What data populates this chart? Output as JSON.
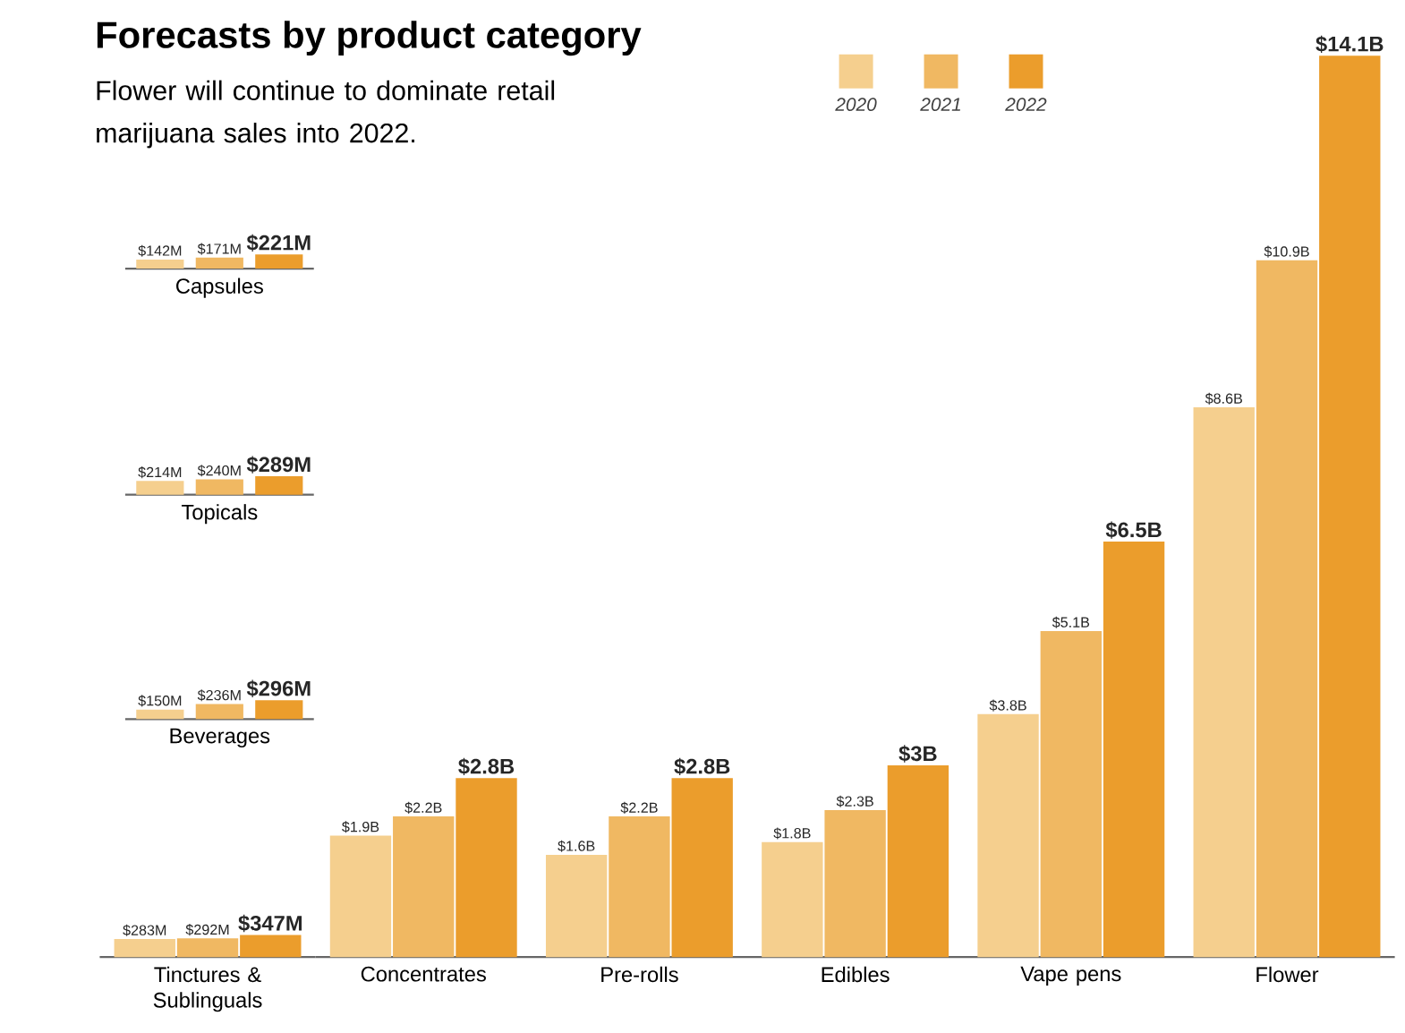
{
  "chart_data": [
    {
      "type": "bar",
      "title": "Forecasts by product category",
      "subtitle": "Flower will continue to dominate retail marijuana sales into 2022.",
      "legend": "top",
      "categories": [
        "Concentrates",
        "Pre-rolls",
        "Edibles",
        "Vape pens",
        "Flower"
      ],
      "series": [
        {
          "name": "2020",
          "color": "#f5cf8e",
          "values": [
            1.9,
            1.6,
            1.8,
            3.8,
            8.6
          ],
          "value_labels": [
            "$1.9B",
            "$1.6B",
            "$1.8B",
            "$3.8B",
            "$8.6B"
          ]
        },
        {
          "name": "2021",
          "color": "#f0b862",
          "values": [
            2.2,
            2.2,
            2.3,
            5.1,
            10.9
          ],
          "value_labels": [
            "$2.2B",
            "$2.2B",
            "$2.3B",
            "$5.1B",
            "$10.9B"
          ]
        },
        {
          "name": "2022",
          "color": "#eb9d2c",
          "values": [
            2.8,
            2.8,
            3,
            6.5,
            14.1
          ],
          "value_labels": [
            "$2.8B",
            "$2.8B",
            "$3B",
            "$6.5B",
            "$14.1B"
          ]
        }
      ]
    },
    {
      "type": "bar",
      "categories": [
        "Capsules"
      ],
      "series": [
        {
          "color": "#f5cf8e",
          "values": [
            142
          ],
          "value_labels": [
            "$142M"
          ]
        },
        {
          "color": "#f0b862",
          "values": [
            171
          ],
          "value_labels": [
            "$171M"
          ]
        },
        {
          "color": "#eb9d2c",
          "values": [
            221
          ],
          "value_labels": [
            "$221M"
          ]
        }
      ]
    },
    {
      "type": "bar",
      "categories": [
        "Topicals"
      ],
      "series": [
        {
          "color": "#f5cf8e",
          "values": [
            214
          ],
          "value_labels": [
            "$214M"
          ]
        },
        {
          "color": "#f0b862",
          "values": [
            240
          ],
          "value_labels": [
            "$240M"
          ]
        },
        {
          "color": "#eb9d2c",
          "values": [
            289
          ],
          "value_labels": [
            "$289M"
          ]
        }
      ]
    },
    {
      "type": "bar",
      "categories": [
        "Beverages"
      ],
      "series": [
        {
          "color": "#f5cf8e",
          "values": [
            150
          ],
          "value_labels": [
            "$150M"
          ]
        },
        {
          "color": "#f0b862",
          "values": [
            236
          ],
          "value_labels": [
            "$236M"
          ]
        },
        {
          "color": "#eb9d2c",
          "values": [
            296
          ],
          "value_labels": [
            "$296M"
          ]
        }
      ]
    },
    {
      "type": "bar",
      "categories": [
        "Tinctures & Sublinguals"
      ],
      "series": [
        {
          "color": "#f5cf8e",
          "values": [
            283
          ],
          "value_labels": [
            "$283M"
          ]
        },
        {
          "color": "#f0b862",
          "values": [
            292
          ],
          "value_labels": [
            "$292M"
          ]
        },
        {
          "color": "#eb9d2c",
          "values": [
            347
          ],
          "value_labels": [
            "$347M"
          ]
        }
      ]
    }
  ]
}
